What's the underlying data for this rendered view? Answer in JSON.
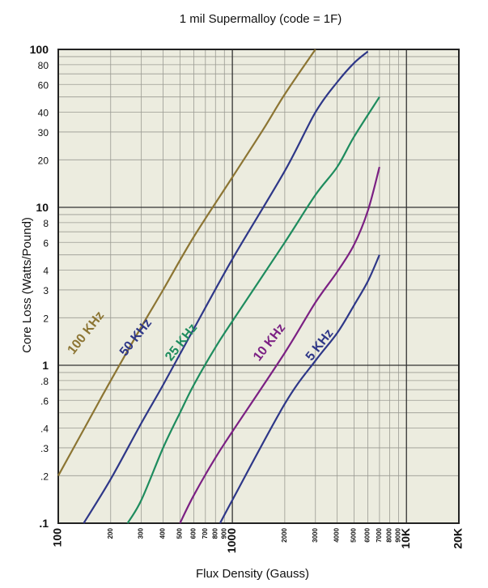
{
  "chart_data": {
    "type": "line",
    "title": "1 mil Supermalloy (code = 1F)",
    "xlabel": "Flux Density (Gauss)",
    "ylabel": "Core Loss (Watts/Pound)",
    "xscale": "log",
    "yscale": "log",
    "xlim": [
      100,
      20000
    ],
    "ylim": [
      0.1,
      100
    ],
    "grid": true,
    "background": "#ececdf",
    "yticks": [
      {
        "value": 0.1,
        "label": ".1",
        "major": true
      },
      {
        "value": 0.2,
        "label": ".2"
      },
      {
        "value": 0.3,
        "label": ".3"
      },
      {
        "value": 0.4,
        "label": ".4"
      },
      {
        "value": 0.6,
        "label": ".6"
      },
      {
        "value": 0.8,
        "label": ".8"
      },
      {
        "value": 1,
        "label": "1",
        "major": true
      },
      {
        "value": 2,
        "label": "2"
      },
      {
        "value": 3,
        "label": "3"
      },
      {
        "value": 4,
        "label": "4"
      },
      {
        "value": 6,
        "label": "6"
      },
      {
        "value": 8,
        "label": "8"
      },
      {
        "value": 10,
        "label": "10",
        "major": true
      },
      {
        "value": 20,
        "label": "20"
      },
      {
        "value": 30,
        "label": "30"
      },
      {
        "value": 40,
        "label": "40"
      },
      {
        "value": 60,
        "label": "60"
      },
      {
        "value": 80,
        "label": "80"
      },
      {
        "value": 100,
        "label": "100",
        "major": true
      }
    ],
    "xticks": [
      {
        "value": 100,
        "label": "100",
        "major": true
      },
      {
        "value": 200,
        "label": "200"
      },
      {
        "value": 300,
        "label": "300"
      },
      {
        "value": 400,
        "label": "400"
      },
      {
        "value": 500,
        "label": "500"
      },
      {
        "value": 600,
        "label": "600"
      },
      {
        "value": 700,
        "label": "700"
      },
      {
        "value": 800,
        "label": "800"
      },
      {
        "value": 900,
        "label": "900"
      },
      {
        "value": 1000,
        "label": "1000",
        "major": true
      },
      {
        "value": 2000,
        "label": "2000"
      },
      {
        "value": 3000,
        "label": "3000"
      },
      {
        "value": 4000,
        "label": "4000"
      },
      {
        "value": 5000,
        "label": "5000"
      },
      {
        "value": 6000,
        "label": "6000"
      },
      {
        "value": 7000,
        "label": "7000"
      },
      {
        "value": 8000,
        "label": "8000"
      },
      {
        "value": 9000,
        "label": "9000"
      },
      {
        "value": 10000,
        "label": "10K",
        "major": true
      },
      {
        "value": 20000,
        "label": "20K",
        "major": true
      }
    ],
    "series": [
      {
        "name": "100 KHz",
        "color": "#8c7533",
        "points": [
          [
            100,
            0.2
          ],
          [
            150,
            0.45
          ],
          [
            200,
            0.8
          ],
          [
            300,
            1.75
          ],
          [
            400,
            3.0
          ],
          [
            600,
            6.5
          ],
          [
            1000,
            15.5
          ],
          [
            1500,
            31
          ],
          [
            2000,
            52
          ],
          [
            3000,
            100
          ]
        ]
      },
      {
        "name": "50 KHz",
        "color": "#2e3788",
        "points": [
          [
            140,
            0.1
          ],
          [
            200,
            0.19
          ],
          [
            300,
            0.43
          ],
          [
            400,
            0.75
          ],
          [
            600,
            1.7
          ],
          [
            1000,
            4.7
          ],
          [
            2000,
            17
          ],
          [
            3000,
            40
          ],
          [
            4000,
            62
          ],
          [
            5000,
            82
          ],
          [
            6000,
            97
          ]
        ]
      },
      {
        "name": "25 KHz",
        "color": "#1e8c5e",
        "points": [
          [
            250,
            0.1
          ],
          [
            300,
            0.14
          ],
          [
            400,
            0.3
          ],
          [
            500,
            0.5
          ],
          [
            600,
            0.75
          ],
          [
            800,
            1.3
          ],
          [
            1000,
            1.9
          ],
          [
            2000,
            6.0
          ],
          [
            3000,
            12
          ],
          [
            4000,
            18
          ],
          [
            5000,
            28
          ],
          [
            7000,
            50
          ]
        ]
      },
      {
        "name": "10 KHz",
        "color": "#7b2083",
        "points": [
          [
            500,
            0.1
          ],
          [
            600,
            0.15
          ],
          [
            800,
            0.26
          ],
          [
            1000,
            0.38
          ],
          [
            2000,
            1.2
          ],
          [
            3000,
            2.5
          ],
          [
            4000,
            3.9
          ],
          [
            5000,
            5.8
          ],
          [
            6000,
            9.5
          ],
          [
            7000,
            18
          ]
        ]
      },
      {
        "name": "5 KHz",
        "color": "#2e3788",
        "points": [
          [
            850,
            0.1
          ],
          [
            1000,
            0.14
          ],
          [
            2000,
            0.57
          ],
          [
            3000,
            1.07
          ],
          [
            4000,
            1.6
          ],
          [
            5000,
            2.4
          ],
          [
            6000,
            3.4
          ],
          [
            7000,
            5.0
          ]
        ]
      }
    ]
  }
}
